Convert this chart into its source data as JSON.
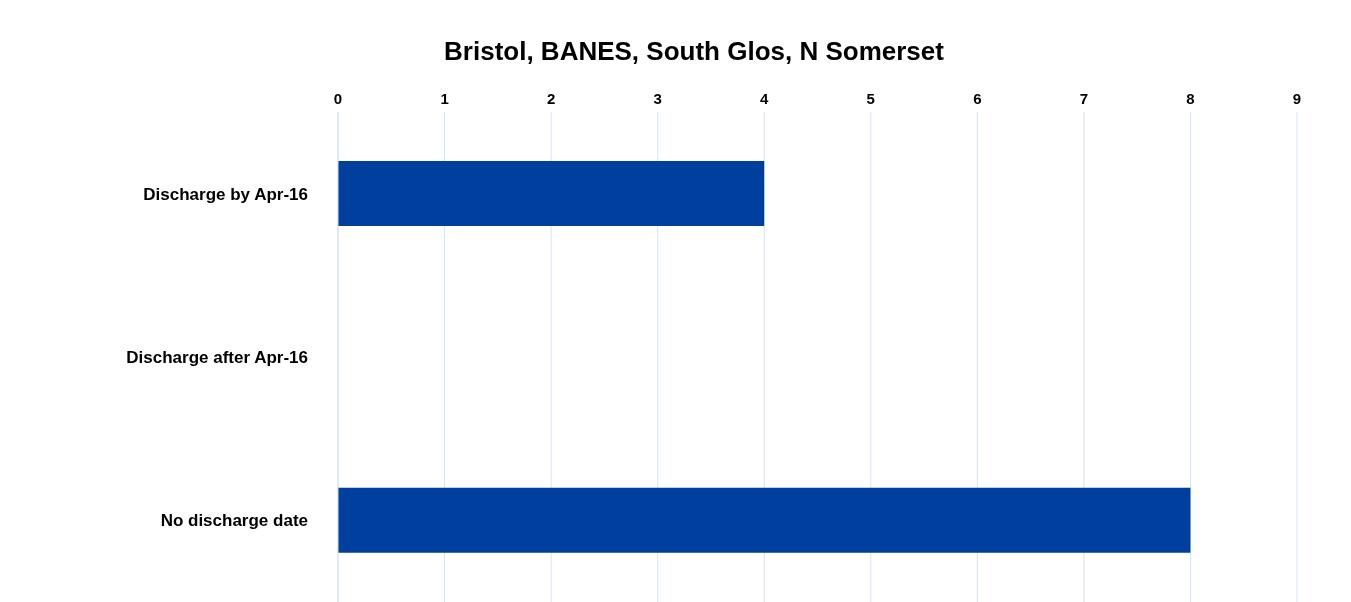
{
  "chart_data": {
    "type": "bar",
    "orientation": "horizontal",
    "title": "Bristol, BANES, South Glos, N Somerset",
    "categories": [
      "Discharge by Apr-16",
      "Discharge after Apr-16",
      "No discharge date"
    ],
    "values": [
      4,
      0,
      8
    ],
    "color": "#003f9e",
    "xlim": [
      0,
      9
    ],
    "xticks": [
      0,
      1,
      2,
      3,
      4,
      5,
      6,
      7,
      8,
      9
    ],
    "grid": "x"
  }
}
